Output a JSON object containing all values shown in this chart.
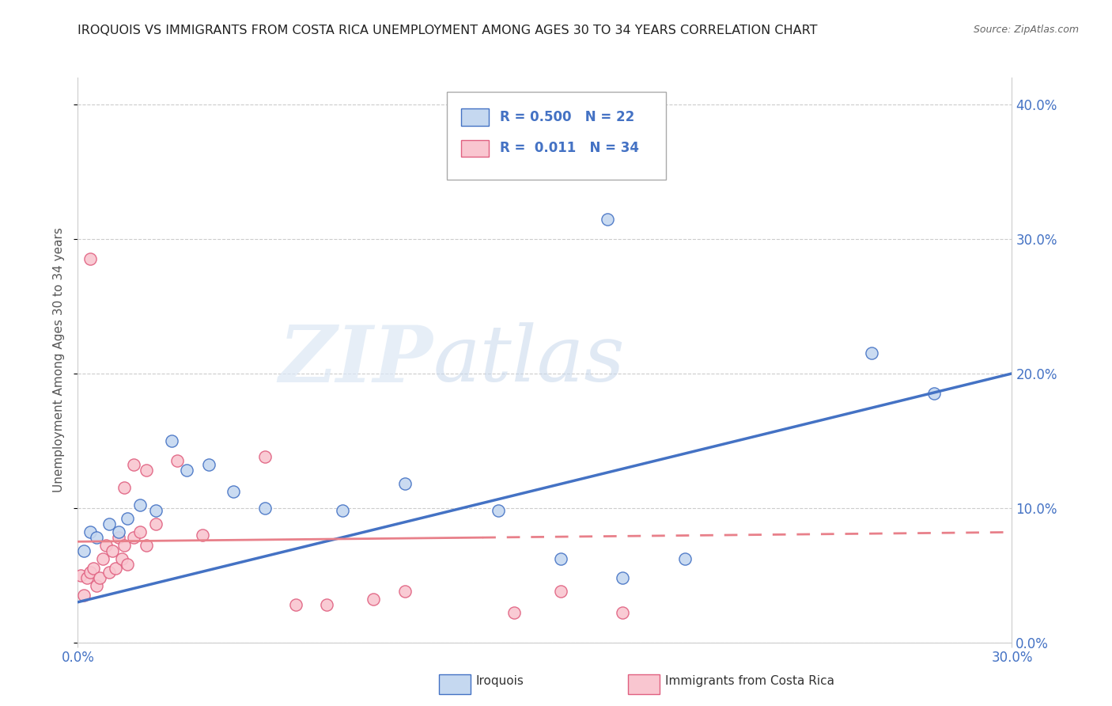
{
  "title": "IROQUOIS VS IMMIGRANTS FROM COSTA RICA UNEMPLOYMENT AMONG AGES 30 TO 34 YEARS CORRELATION CHART",
  "source": "Source: ZipAtlas.com",
  "ylabel": "Unemployment Among Ages 30 to 34 years",
  "legend_iroquois": "Iroquois",
  "legend_immigrants": "Immigrants from Costa Rica",
  "r_iroquois": "0.500",
  "n_iroquois": "22",
  "r_immigrants": "0.011",
  "n_immigrants": "34",
  "color_iroquois_fill": "#c5d8f0",
  "color_iroquois_edge": "#4472c4",
  "color_immigrants_fill": "#f9c6d0",
  "color_immigrants_edge": "#e06080",
  "color_iroquois_line": "#4472c4",
  "color_immigrants_line": "#e8808a",
  "iroquois_points": [
    [
      0.002,
      0.068
    ],
    [
      0.004,
      0.082
    ],
    [
      0.006,
      0.078
    ],
    [
      0.01,
      0.088
    ],
    [
      0.013,
      0.082
    ],
    [
      0.016,
      0.092
    ],
    [
      0.02,
      0.102
    ],
    [
      0.025,
      0.098
    ],
    [
      0.03,
      0.15
    ],
    [
      0.035,
      0.128
    ],
    [
      0.042,
      0.132
    ],
    [
      0.05,
      0.112
    ],
    [
      0.06,
      0.1
    ],
    [
      0.085,
      0.098
    ],
    [
      0.105,
      0.118
    ],
    [
      0.135,
      0.098
    ],
    [
      0.155,
      0.062
    ],
    [
      0.175,
      0.048
    ],
    [
      0.195,
      0.062
    ],
    [
      0.17,
      0.315
    ],
    [
      0.255,
      0.215
    ],
    [
      0.275,
      0.185
    ]
  ],
  "immigrants_points": [
    [
      0.001,
      0.05
    ],
    [
      0.002,
      0.035
    ],
    [
      0.003,
      0.048
    ],
    [
      0.004,
      0.052
    ],
    [
      0.005,
      0.055
    ],
    [
      0.006,
      0.042
    ],
    [
      0.007,
      0.048
    ],
    [
      0.008,
      0.062
    ],
    [
      0.009,
      0.072
    ],
    [
      0.01,
      0.052
    ],
    [
      0.011,
      0.068
    ],
    [
      0.012,
      0.055
    ],
    [
      0.013,
      0.078
    ],
    [
      0.014,
      0.062
    ],
    [
      0.015,
      0.072
    ],
    [
      0.016,
      0.058
    ],
    [
      0.018,
      0.078
    ],
    [
      0.02,
      0.082
    ],
    [
      0.022,
      0.072
    ],
    [
      0.025,
      0.088
    ],
    [
      0.004,
      0.285
    ],
    [
      0.032,
      0.135
    ],
    [
      0.015,
      0.115
    ],
    [
      0.018,
      0.132
    ],
    [
      0.022,
      0.128
    ],
    [
      0.06,
      0.138
    ],
    [
      0.04,
      0.08
    ],
    [
      0.07,
      0.028
    ],
    [
      0.08,
      0.028
    ],
    [
      0.095,
      0.032
    ],
    [
      0.105,
      0.038
    ],
    [
      0.14,
      0.022
    ],
    [
      0.155,
      0.038
    ],
    [
      0.175,
      0.022
    ]
  ],
  "xmin": 0.0,
  "xmax": 0.3,
  "ymin": 0.0,
  "ymax": 0.42,
  "iq_line_x0": 0.0,
  "iq_line_y0": 0.03,
  "iq_line_x1": 0.3,
  "iq_line_y1": 0.2,
  "im_line_x0": 0.0,
  "im_line_y0": 0.075,
  "im_line_x1": 0.3,
  "im_line_y1": 0.082,
  "watermark_zip": "ZIP",
  "watermark_atlas": "atlas",
  "background_color": "#ffffff",
  "grid_color": "#cccccc",
  "tick_color": "#4472c4",
  "title_color": "#222222",
  "source_color": "#666666"
}
